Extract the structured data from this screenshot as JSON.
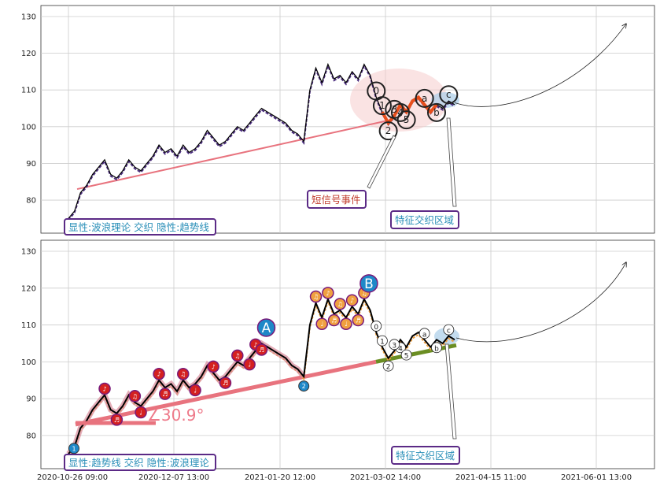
{
  "chart_data": [
    {
      "type": "line",
      "panel": "top",
      "ylim": [
        71,
        133
      ],
      "yticks": [
        80,
        90,
        100,
        110,
        120,
        130
      ],
      "grid": true,
      "series": [
        {
          "values": [
            75,
            77,
            82,
            84,
            87,
            89,
            91,
            87,
            86,
            88,
            91,
            89,
            88,
            90,
            92,
            95,
            93,
            94,
            92,
            95,
            93,
            94,
            96,
            99,
            97,
            95,
            96,
            98,
            100,
            99,
            101,
            103,
            105,
            104,
            103,
            102,
            101,
            99,
            98,
            96,
            110,
            116,
            112,
            117,
            113,
            114,
            112,
            115,
            113,
            117,
            114,
            108,
            104,
            101,
            103,
            106,
            104,
            107,
            108,
            106,
            104,
            106,
            105,
            107,
            106
          ]
        }
      ],
      "trendline": {
        "from": 83,
        "to": 102
      },
      "forecast": {
        "from": 106.5,
        "to": 128
      },
      "wave_labels": [
        "0",
        "2",
        "1",
        "4",
        "3",
        "5",
        "a",
        "b",
        "c"
      ],
      "annotations": {
        "signal_event": "短信号事件",
        "feature_zone": "特征交织区域",
        "legend_text": "显性:波浪理论 交织 隐性:趋势线"
      }
    },
    {
      "type": "line",
      "panel": "bottom",
      "ylim": [
        71,
        133
      ],
      "yticks": [
        80,
        90,
        100,
        110,
        120,
        130
      ],
      "grid": true,
      "x_tick_labels": [
        "2020-10-26 09:00",
        "2020-12-07 13:00",
        "2021-01-20 12:00",
        "2021-03-02 14:00",
        "2021-04-15 11:00",
        "2021-06-01 13:00"
      ],
      "series": [
        {
          "values": [
            75,
            77,
            82,
            84,
            87,
            89,
            91,
            87,
            86,
            88,
            91,
            89,
            88,
            90,
            92,
            95,
            93,
            94,
            92,
            95,
            93,
            94,
            96,
            99,
            97,
            95,
            96,
            98,
            100,
            99,
            101,
            103,
            105,
            104,
            103,
            102,
            101,
            99,
            98,
            96,
            110,
            116,
            112,
            117,
            113,
            114,
            112,
            115,
            113,
            117,
            114,
            108,
            104,
            101,
            103,
            106,
            104,
            107,
            108,
            106,
            104,
            106,
            105,
            107,
            106
          ]
        }
      ],
      "trendline": {
        "from": 83,
        "to": 100
      },
      "trendline2": {
        "from": 100,
        "to": 104.5
      },
      "forecast": {
        "from": 106.5,
        "to": 127
      },
      "angle_label": "∠30.9°",
      "big_markers": [
        "A",
        "B"
      ],
      "wave_labels": [
        "0",
        "2",
        "1",
        "4",
        "3",
        "5",
        "a",
        "b",
        "c"
      ],
      "small_marker_labels": [
        "1",
        "2",
        "♪",
        "♬",
        "♫",
        "♩"
      ],
      "annotations": {
        "feature_zone": "特征交织区域",
        "legend_text": "显性:趋势线 交织 隐性:波浪理论"
      }
    }
  ],
  "colors": {
    "price": "#000000",
    "trend": "#e8737e",
    "trend2": "#6b8e23",
    "marker_red": "#d42020",
    "marker_orange": "#f0a040",
    "marker_blue": "#1e88c8",
    "box_border": "#5b2a86"
  }
}
